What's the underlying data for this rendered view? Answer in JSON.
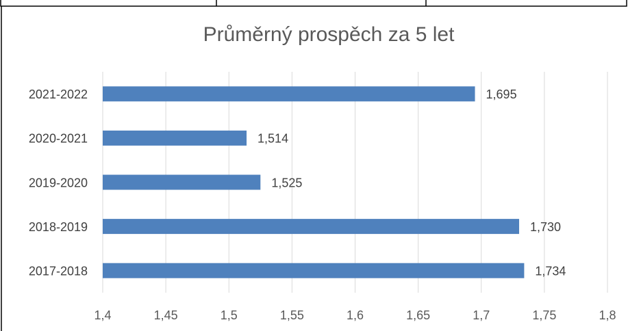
{
  "chart_data": {
    "type": "bar",
    "orientation": "horizontal",
    "title": "Průměrný prospěch za 5 let",
    "categories": [
      "2021-2022",
      "2020-2021",
      "2019-2020",
      "2018-2019",
      "2017-2018"
    ],
    "values": [
      1.695,
      1.514,
      1.525,
      1.73,
      1.734
    ],
    "value_labels": [
      "1,695",
      "1,514",
      "1,525",
      "1,730",
      "1,734"
    ],
    "color": "#4f81bd",
    "xlim": [
      1.4,
      1.8
    ],
    "xticks": [
      {
        "value": 1.4,
        "label": "1,4"
      },
      {
        "value": 1.45,
        "label": "1,45"
      },
      {
        "value": 1.5,
        "label": "1,5"
      },
      {
        "value": 1.55,
        "label": "1,55"
      },
      {
        "value": 1.6,
        "label": "1,6"
      },
      {
        "value": 1.65,
        "label": "1,65"
      },
      {
        "value": 1.7,
        "label": "1,7"
      },
      {
        "value": 1.75,
        "label": "1,75"
      },
      {
        "value": 1.8,
        "label": "1,8"
      }
    ],
    "grid": true
  }
}
